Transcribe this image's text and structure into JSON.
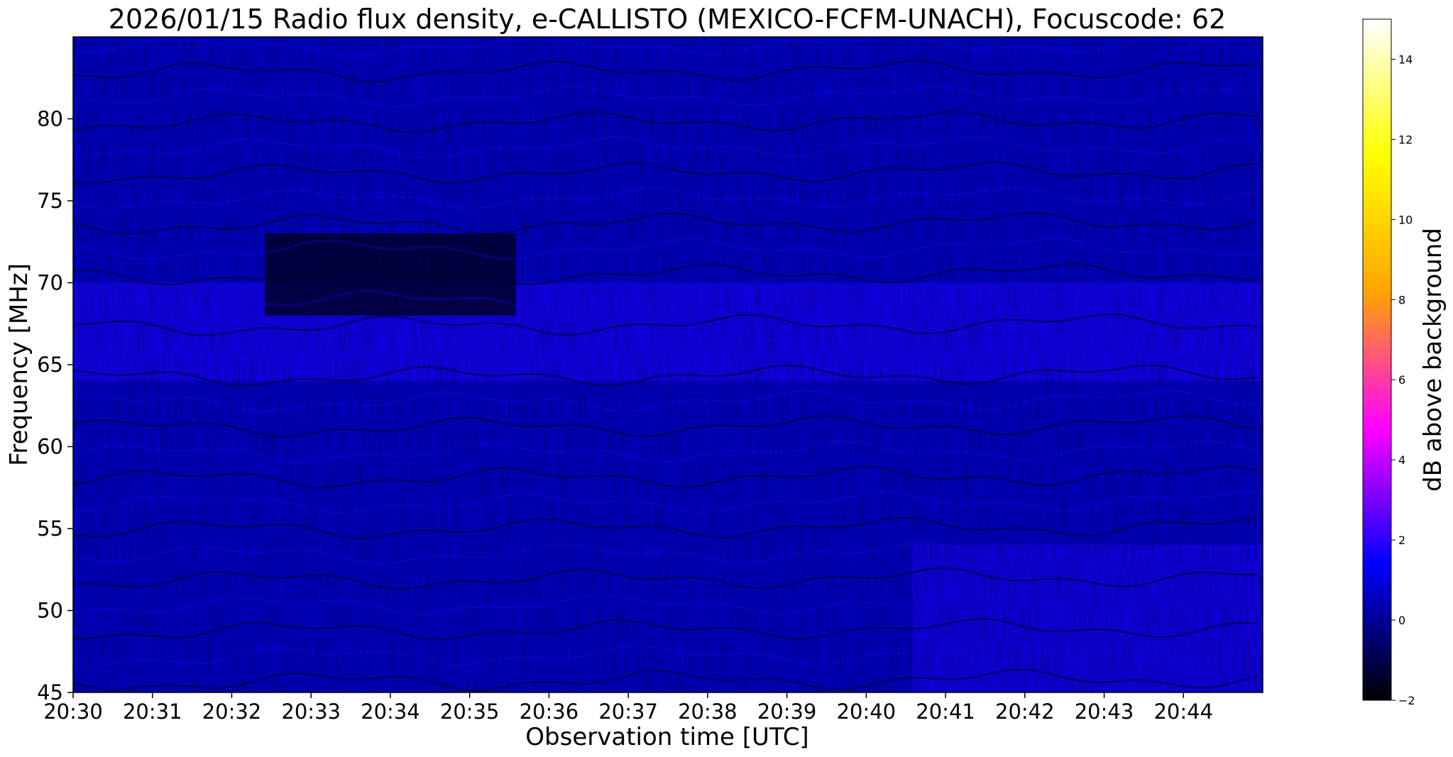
{
  "chart_data": {
    "type": "heatmap",
    "title": "2026/01/15  Radio flux density, e-CALLISTO (MEXICO-FCFM-UNACH), Focuscode: 62",
    "xlabel": "Observation time [UTC]",
    "ylabel": "Frequency [MHz]",
    "x_ticks": [
      "20:30",
      "20:31",
      "20:32",
      "20:33",
      "20:34",
      "20:35",
      "20:36",
      "20:37",
      "20:38",
      "20:39",
      "20:40",
      "20:41",
      "20:42",
      "20:43",
      "20:44"
    ],
    "xlim": [
      "20:30",
      "20:45"
    ],
    "y_ticks": [
      45,
      50,
      55,
      60,
      65,
      70,
      75,
      80
    ],
    "ylim": [
      45,
      85
    ],
    "colorbar": {
      "label": "dB above background",
      "ticks": [
        -2,
        0,
        2,
        4,
        6,
        8,
        10,
        12,
        14
      ],
      "range": [
        -2,
        15
      ],
      "colormap": [
        "#000000",
        "#0000ff",
        "#ff00ff",
        "#ffa500",
        "#ffff00",
        "#ffffff"
      ]
    },
    "features": {
      "background_db": 0.5,
      "dark_band_mhz": [
        68,
        73
      ],
      "dark_band_time": [
        "20:32:25",
        "20:35:35"
      ],
      "dark_band_db": -1.5,
      "bright_band_mhz": [
        64,
        70
      ],
      "bright_band_db": 1.8,
      "lower_bright_region_time": [
        "20:40:35",
        "20:45"
      ],
      "lower_bright_region_mhz": [
        45,
        54
      ]
    }
  }
}
